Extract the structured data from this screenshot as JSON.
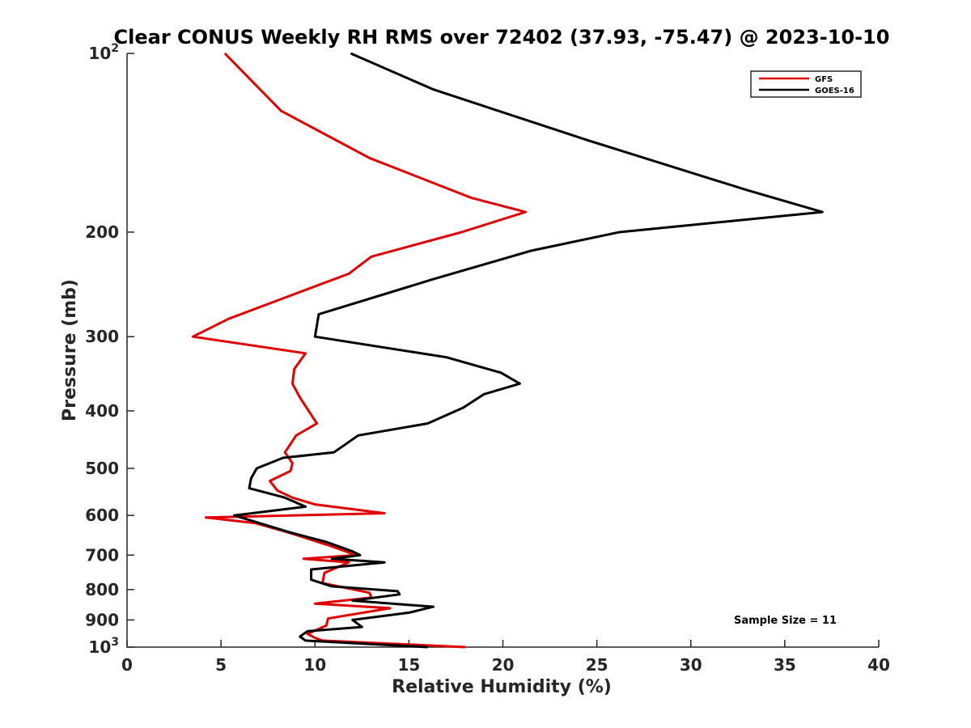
{
  "chart_data": {
    "type": "line",
    "title": "Clear CONUS Weekly RH RMS over 72402 (37.93, -75.47) @ 2023-10-10",
    "xlabel": "Relative Humidity (%)",
    "ylabel": "Pressure (mb)",
    "xlim": [
      0,
      40
    ],
    "ylim": [
      100,
      1000
    ],
    "yscale": "log",
    "y_reversed": true,
    "xticks": [
      0,
      5,
      10,
      15,
      20,
      25,
      30,
      35,
      40
    ],
    "xtick_labels": [
      "0",
      "5",
      "10",
      "15",
      "20",
      "25",
      "30",
      "35",
      "40"
    ],
    "yticks": [
      100,
      200,
      300,
      400,
      500,
      600,
      700,
      800,
      900,
      1000
    ],
    "ytick_labels": [
      {
        "base": "10",
        "exp": "2"
      },
      {
        "base": "200",
        "exp": ""
      },
      {
        "base": "300",
        "exp": ""
      },
      {
        "base": "400",
        "exp": ""
      },
      {
        "base": "500",
        "exp": ""
      },
      {
        "base": "600",
        "exp": ""
      },
      {
        "base": "700",
        "exp": ""
      },
      {
        "base": "800",
        "exp": ""
      },
      {
        "base": "900",
        "exp": ""
      },
      {
        "base": "10",
        "exp": "3"
      }
    ],
    "legend_position": "top-right",
    "grid": false,
    "annotation": "Sample Size = 11",
    "series": [
      {
        "name": "GFS",
        "color": "#e00000",
        "points": [
          [
            5.2,
            100
          ],
          [
            8.2,
            125
          ],
          [
            12.9,
            150
          ],
          [
            18.3,
            175
          ],
          [
            21.2,
            185
          ],
          [
            17.8,
            200
          ],
          [
            13.0,
            220
          ],
          [
            11.8,
            235
          ],
          [
            8.1,
            260
          ],
          [
            5.4,
            280
          ],
          [
            3.5,
            300
          ],
          [
            9.5,
            320
          ],
          [
            8.9,
            340
          ],
          [
            8.8,
            360
          ],
          [
            9.2,
            380
          ],
          [
            10.1,
            420
          ],
          [
            9.0,
            440
          ],
          [
            8.4,
            470
          ],
          [
            8.8,
            490
          ],
          [
            8.7,
            505
          ],
          [
            7.6,
            525
          ],
          [
            8.0,
            545
          ],
          [
            8.8,
            560
          ],
          [
            10.0,
            575
          ],
          [
            13.7,
            595
          ],
          [
            4.2,
            605
          ],
          [
            6.8,
            618
          ],
          [
            8.5,
            640
          ],
          [
            10.8,
            675
          ],
          [
            12.2,
            700
          ],
          [
            9.4,
            710
          ],
          [
            11.8,
            720
          ],
          [
            10.5,
            750
          ],
          [
            10.4,
            780
          ],
          [
            12.9,
            810
          ],
          [
            13.0,
            825
          ],
          [
            10.0,
            845
          ],
          [
            14.0,
            860
          ],
          [
            10.7,
            895
          ],
          [
            10.6,
            920
          ],
          [
            9.6,
            950
          ],
          [
            10.0,
            965
          ],
          [
            10.4,
            975
          ],
          [
            18.0,
            1000
          ]
        ]
      },
      {
        "name": "GOES-16",
        "color": "#000000",
        "points": [
          [
            11.9,
            100
          ],
          [
            16.3,
            115
          ],
          [
            24.5,
            140
          ],
          [
            33.0,
            170
          ],
          [
            37.0,
            185
          ],
          [
            26.2,
            200
          ],
          [
            21.5,
            215
          ],
          [
            16.3,
            240
          ],
          [
            10.2,
            275
          ],
          [
            10.0,
            300
          ],
          [
            17.0,
            325
          ],
          [
            19.9,
            345
          ],
          [
            20.9,
            360
          ],
          [
            19.0,
            375
          ],
          [
            17.9,
            395
          ],
          [
            16.0,
            420
          ],
          [
            12.3,
            440
          ],
          [
            11.0,
            470
          ],
          [
            8.3,
            480
          ],
          [
            6.9,
            500
          ],
          [
            6.6,
            520
          ],
          [
            6.5,
            540
          ],
          [
            8.4,
            560
          ],
          [
            9.5,
            580
          ],
          [
            5.7,
            600
          ],
          [
            8.6,
            640
          ],
          [
            10.6,
            665
          ],
          [
            12.0,
            690
          ],
          [
            12.4,
            700
          ],
          [
            10.9,
            710
          ],
          [
            13.7,
            720
          ],
          [
            9.8,
            740
          ],
          [
            9.8,
            770
          ],
          [
            10.9,
            790
          ],
          [
            14.4,
            805
          ],
          [
            14.5,
            815
          ],
          [
            12.0,
            835
          ],
          [
            16.3,
            855
          ],
          [
            15.0,
            875
          ],
          [
            12.0,
            900
          ],
          [
            12.5,
            925
          ],
          [
            9.6,
            940
          ],
          [
            9.2,
            960
          ],
          [
            9.5,
            975
          ],
          [
            16.0,
            1000
          ]
        ]
      }
    ]
  }
}
